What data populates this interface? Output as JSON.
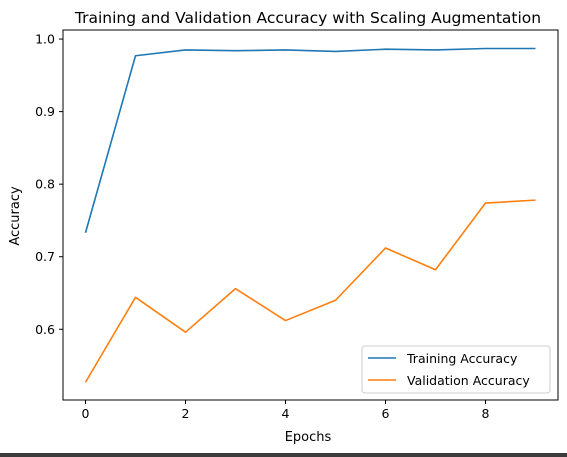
{
  "chart_data": {
    "type": "line",
    "title": "Training and Validation Accuracy with Scaling Augmentation",
    "xlabel": "Epochs",
    "ylabel": "Accuracy",
    "x": [
      0,
      1,
      2,
      3,
      4,
      5,
      6,
      7,
      8,
      9
    ],
    "xlim": [
      -0.45,
      9.45
    ],
    "ylim": [
      0.5025,
      1.0125
    ],
    "xticks": [
      0,
      2,
      4,
      6,
      8
    ],
    "yticks": [
      0.6,
      0.7,
      0.8,
      0.9,
      1.0
    ],
    "xtick_labels": [
      "0",
      "2",
      "4",
      "6",
      "8"
    ],
    "ytick_labels": [
      "0.6",
      "0.7",
      "0.8",
      "0.9",
      "1.0"
    ],
    "grid": false,
    "legend_position": "lower-right",
    "series": [
      {
        "name": "Training Accuracy",
        "color": "#1f77b4",
        "values": [
          0.733,
          0.977,
          0.985,
          0.984,
          0.985,
          0.983,
          0.986,
          0.985,
          0.987,
          0.987
        ]
      },
      {
        "name": "Validation Accuracy",
        "color": "#ff7f0e",
        "values": [
          0.527,
          0.644,
          0.596,
          0.656,
          0.612,
          0.64,
          0.712,
          0.682,
          0.774,
          0.778
        ]
      }
    ]
  }
}
